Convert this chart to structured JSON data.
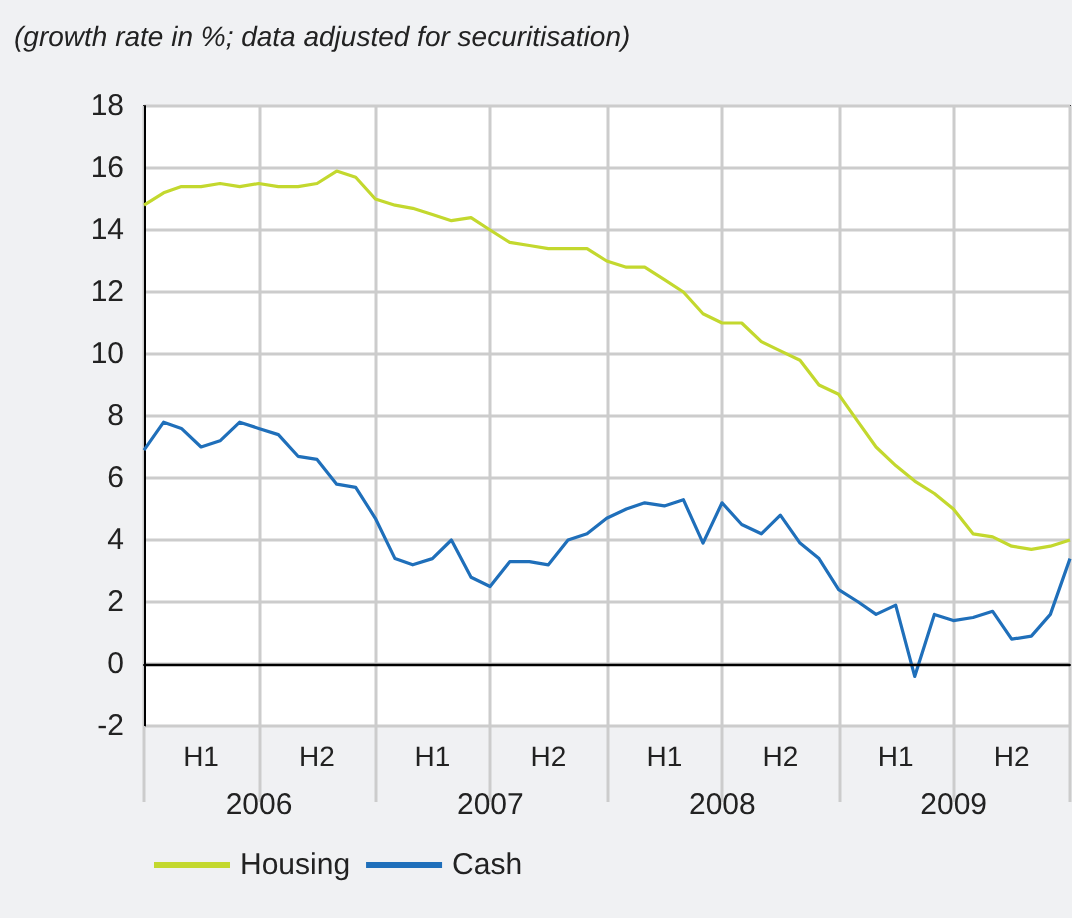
{
  "chart_data": {
    "type": "line",
    "title": "(growth rate in %; data adjusted for securitisation)",
    "x": [
      "2006-01",
      "2006-02",
      "2006-03",
      "2006-04",
      "2006-05",
      "2006-06",
      "2006-07",
      "2006-08",
      "2006-09",
      "2006-10",
      "2006-11",
      "2006-12",
      "2007-01",
      "2007-02",
      "2007-03",
      "2007-04",
      "2007-05",
      "2007-06",
      "2007-07",
      "2007-08",
      "2007-09",
      "2007-10",
      "2007-11",
      "2007-12",
      "2008-01",
      "2008-02",
      "2008-03",
      "2008-04",
      "2008-05",
      "2008-06",
      "2008-07",
      "2008-08",
      "2008-09",
      "2008-10",
      "2008-11",
      "2008-12",
      "2009-01",
      "2009-02",
      "2009-03",
      "2009-04",
      "2009-05",
      "2009-06",
      "2009-07",
      "2009-08",
      "2009-09",
      "2009-10",
      "2009-11",
      "2009-12",
      "2010-01"
    ],
    "series": [
      {
        "name": "Housing",
        "color": "#c3d82e",
        "values": [
          14.8,
          15.2,
          15.4,
          15.4,
          15.5,
          15.4,
          15.5,
          15.4,
          15.4,
          15.5,
          15.9,
          15.7,
          15.0,
          14.8,
          14.7,
          14.5,
          14.3,
          14.4,
          14.0,
          13.6,
          13.5,
          13.4,
          13.4,
          13.4,
          13.0,
          12.8,
          12.8,
          12.4,
          12.0,
          11.3,
          11.0,
          11.0,
          10.4,
          10.1,
          9.8,
          9.0,
          8.7,
          7.8,
          7.0,
          6.4,
          5.9,
          5.5,
          5.0,
          4.2,
          4.1,
          3.8,
          3.7,
          3.8,
          4.0
        ]
      },
      {
        "name": "Cash",
        "color": "#1f6fba",
        "values": [
          6.9,
          7.8,
          7.6,
          7.0,
          7.2,
          7.8,
          7.6,
          7.4,
          6.7,
          6.6,
          5.8,
          5.7,
          4.7,
          3.4,
          3.2,
          3.4,
          4.0,
          2.8,
          2.5,
          3.3,
          3.3,
          3.2,
          4.0,
          4.2,
          4.7,
          5.0,
          5.2,
          5.1,
          5.3,
          3.9,
          5.2,
          4.5,
          4.2,
          4.8,
          3.9,
          3.4,
          2.4,
          2.0,
          1.6,
          1.9,
          -0.4,
          1.6,
          1.4,
          1.5,
          1.7,
          0.8,
          0.9,
          1.6,
          3.4
        ]
      }
    ],
    "xlim": [
      "2006-01",
      "2010-01"
    ],
    "xticks": [
      {
        "value": "2006-01",
        "label": null
      },
      {
        "value": "2006-04",
        "label": "H1"
      },
      {
        "value": "2006-07",
        "label": null
      },
      {
        "value": "2006-10",
        "label": "H2"
      },
      {
        "value": "2007-01",
        "label": null
      },
      {
        "value": "2007-04",
        "label": "H1"
      },
      {
        "value": "2007-07",
        "label": null
      },
      {
        "value": "2007-10",
        "label": "H2"
      },
      {
        "value": "2008-01",
        "label": null
      },
      {
        "value": "2008-04",
        "label": "H1"
      },
      {
        "value": "2008-07",
        "label": null
      },
      {
        "value": "2008-10",
        "label": "H2"
      },
      {
        "value": "2009-01",
        "label": null
      },
      {
        "value": "2009-04",
        "label": "H1"
      },
      {
        "value": "2009-07",
        "label": null
      },
      {
        "value": "2009-10",
        "label": "H2"
      },
      {
        "value": "2010-01",
        "label": null
      }
    ],
    "annotations": [
      "2006",
      "2007",
      "2008",
      "2009"
    ],
    "ylim": [
      -2,
      18
    ],
    "yticks": [
      -2,
      0,
      2,
      4,
      6,
      8,
      10,
      12,
      14,
      16,
      18
    ],
    "ref_lines": [
      {
        "axis": "y",
        "value": 0,
        "color": "#000000"
      }
    ],
    "grid": true,
    "legend": "bottom left",
    "marker": "none",
    "line_style": "solid"
  }
}
